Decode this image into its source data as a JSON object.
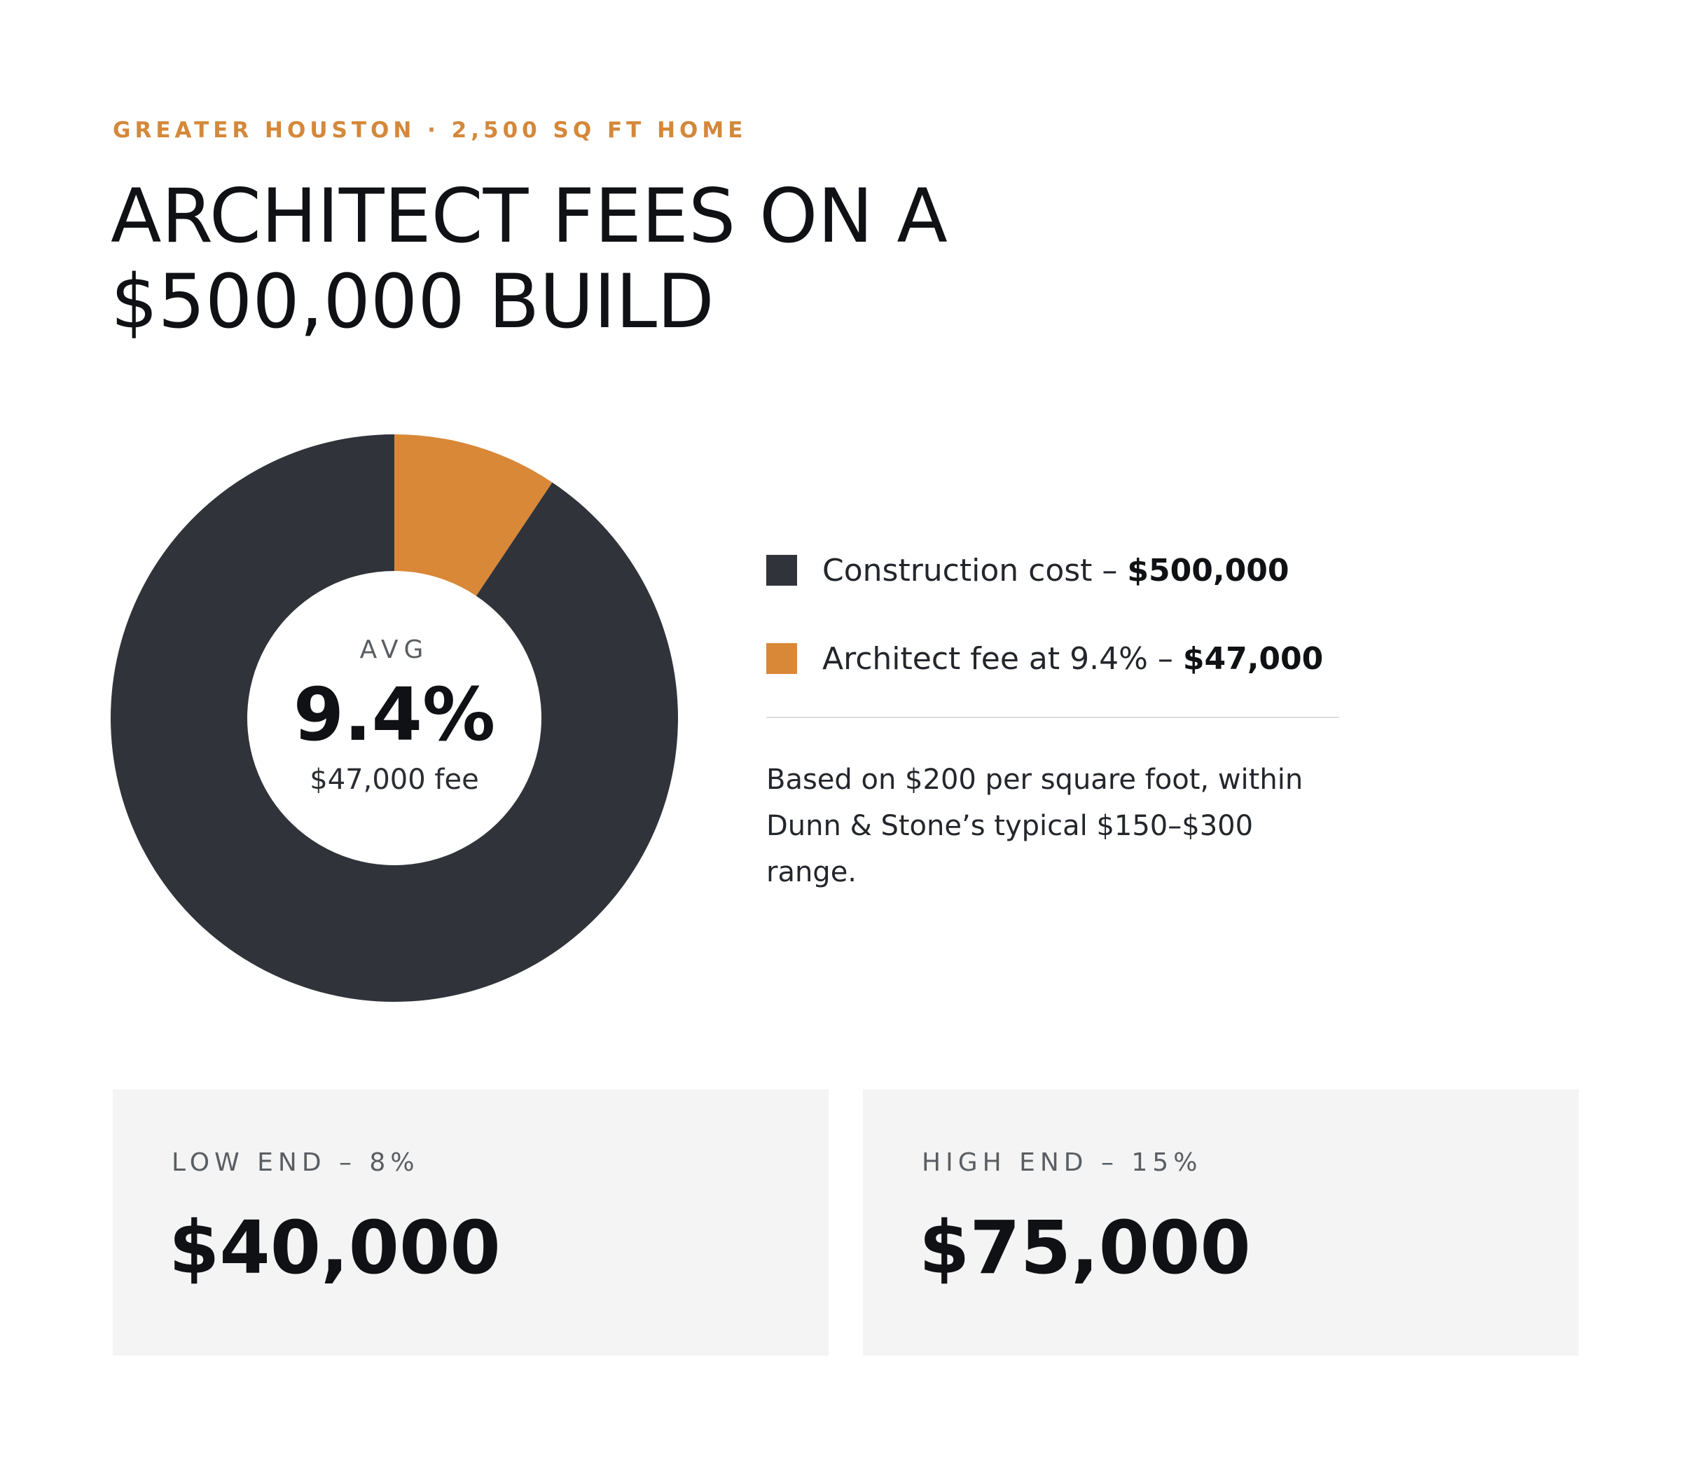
{
  "eyebrow": "GREATER HOUSTON · 2,500 SQ FT HOME",
  "title_line1": "ARCHITECT FEES ON A",
  "title_line2": "$500,000 BUILD",
  "colors": {
    "construction": "#30343a",
    "architect": "#d98838",
    "accent_text": "#d4883a"
  },
  "center": {
    "label": "AVG",
    "value": "9.4%",
    "sub": "$47,000 fee"
  },
  "legend": [
    {
      "text": "Construction cost – ",
      "amount": "$500,000",
      "color": "#30343a"
    },
    {
      "text": "Architect fee at 9.4% – ",
      "amount": "$47,000",
      "color": "#d98838"
    }
  ],
  "note": "Based on $200 per square foot, within Dunn & Stone’s typical $150–$300 range.",
  "cards": [
    {
      "label": "LOW END – 8%",
      "value": "$40,000"
    },
    {
      "label": "HIGH END – 15%",
      "value": "$75,000"
    }
  ],
  "chart_data": {
    "type": "pie",
    "variant": "donut",
    "categories": [
      "Construction cost",
      "Architect fee at 9.4%"
    ],
    "values": [
      500000,
      47000
    ],
    "colors": [
      "#30343a",
      "#d98838"
    ],
    "legend_position": "right"
  }
}
